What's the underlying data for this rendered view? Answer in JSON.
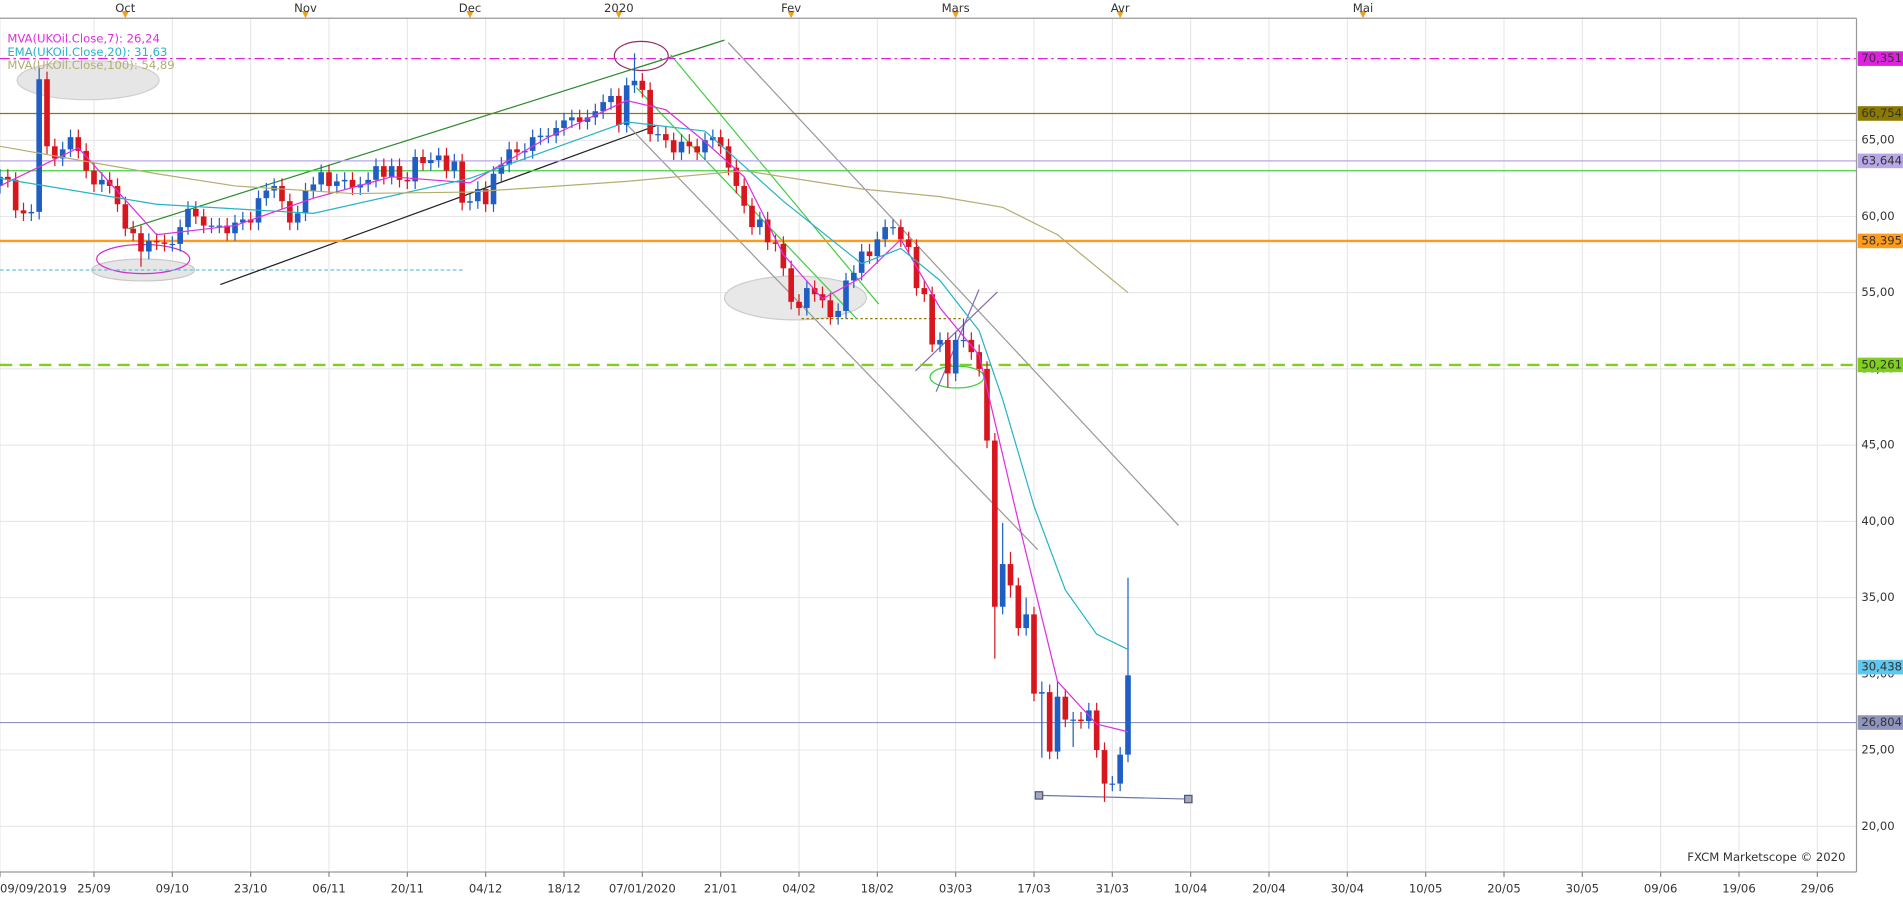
{
  "chart_data": {
    "type": "candlestick",
    "x": [
      0,
      1,
      2,
      3,
      4,
      5,
      6,
      7,
      8,
      9,
      10,
      11,
      12,
      13,
      14,
      15,
      16,
      17,
      18,
      19,
      20,
      21,
      22,
      23,
      24,
      25,
      26,
      27,
      28,
      29,
      30,
      31,
      32,
      33,
      34,
      35,
      36,
      37,
      38,
      39,
      40,
      41,
      42,
      43,
      44,
      45,
      46,
      47,
      48,
      49,
      50,
      51,
      52,
      53,
      54,
      55,
      56,
      57,
      58,
      59,
      60,
      61,
      62,
      63,
      64,
      65,
      66,
      67,
      68,
      69,
      70,
      71,
      72,
      73,
      74,
      75,
      76,
      77,
      78,
      79,
      80,
      81,
      82,
      83,
      84,
      85,
      86,
      87,
      88,
      89,
      90,
      91,
      92,
      93,
      94,
      95,
      96,
      97,
      98,
      99,
      100,
      101,
      102,
      103,
      104,
      105,
      106,
      107,
      108,
      109,
      110,
      111,
      112,
      113,
      114,
      115,
      116,
      117,
      118,
      119,
      120,
      121,
      122,
      123,
      124,
      125,
      126,
      127,
      128,
      129,
      130,
      131,
      132,
      133,
      134,
      135,
      136,
      137,
      138,
      139,
      140,
      141,
      142,
      143,
      144
    ],
    "open": [
      62.0,
      62.6,
      62.4,
      60.4,
      60.2,
      60.3,
      69.0,
      64.6,
      63.8,
      64.4,
      65.2,
      64.3,
      63.0,
      62.1,
      62.4,
      62.0,
      60.8,
      59.2,
      58.9,
      57.7,
      58.4,
      58.3,
      58.2,
      58.2,
      59.3,
      60.5,
      60.0,
      59.4,
      59.4,
      59.4,
      58.9,
      59.6,
      59.8,
      59.6,
      61.2,
      61.7,
      62.0,
      61.0,
      59.6,
      60.2,
      61.7,
      62.1,
      62.9,
      62.0,
      62.3,
      62.4,
      61.9,
      62.1,
      62.4,
      63.3,
      62.6,
      63.3,
      62.4,
      62.3,
      63.9,
      63.5,
      63.7,
      64.0,
      63.0,
      63.6,
      60.9,
      61.0,
      61.8,
      60.8,
      62.8,
      63.4,
      64.4,
      64.2,
      64.3,
      65.2,
      65.3,
      65.3,
      65.8,
      66.3,
      66.5,
      66.2,
      66.5,
      66.9,
      67.5,
      67.9,
      66.0,
      68.6,
      68.9,
      68.3,
      65.4,
      65.4,
      65.0,
      64.2,
      64.9,
      64.6,
      64.2,
      65.0,
      65.2,
      64.6,
      63.2,
      62.0,
      60.7,
      59.3,
      59.8,
      58.3,
      58.2,
      56.6,
      54.4,
      54.0,
      55.3,
      54.9,
      54.5,
      53.4,
      53.8,
      55.8,
      56.3,
      57.7,
      57.4,
      58.5,
      59.3,
      59.3,
      58.5,
      58.0,
      55.3,
      54.9,
      51.6,
      51.9,
      49.7,
      51.9,
      51.9,
      51.1,
      50.0,
      45.3,
      34.4,
      37.2,
      35.8,
      33.0,
      33.9,
      28.7,
      28.8,
      24.9,
      28.5,
      27.0,
      27.0,
      26.9,
      27.6,
      25.0,
      22.8,
      22.8,
      24.7
    ],
    "high": [
      63.1,
      63.1,
      62.9,
      60.9,
      60.8,
      69.8,
      69.5,
      65.1,
      64.9,
      65.7,
      65.7,
      64.8,
      63.5,
      62.9,
      62.9,
      62.5,
      61.3,
      59.7,
      59.4,
      58.9,
      58.9,
      58.8,
      58.7,
      59.8,
      61.0,
      61.0,
      60.5,
      59.9,
      59.9,
      59.9,
      60.1,
      60.3,
      60.3,
      61.7,
      62.2,
      62.5,
      62.5,
      61.5,
      60.7,
      62.2,
      62.6,
      63.4,
      63.4,
      62.8,
      62.9,
      62.9,
      62.6,
      62.9,
      63.8,
      63.8,
      63.8,
      63.8,
      62.9,
      64.4,
      64.4,
      64.2,
      64.5,
      64.5,
      64.1,
      64.1,
      61.5,
      62.3,
      62.3,
      63.3,
      63.9,
      64.9,
      64.9,
      64.8,
      65.7,
      65.8,
      65.8,
      66.3,
      66.8,
      67.0,
      67.0,
      67.0,
      67.4,
      68.0,
      68.4,
      68.4,
      69.1,
      70.7,
      69.4,
      68.8,
      65.9,
      65.9,
      65.5,
      65.4,
      65.4,
      65.1,
      65.5,
      65.7,
      65.7,
      65.1,
      63.7,
      62.5,
      61.2,
      60.3,
      60.3,
      58.8,
      58.7,
      57.1,
      54.9,
      55.8,
      55.8,
      55.4,
      55.0,
      54.3,
      56.3,
      56.8,
      58.2,
      58.2,
      59.0,
      59.8,
      59.8,
      59.8,
      59.0,
      58.5,
      55.8,
      55.4,
      52.4,
      52.4,
      52.4,
      53.3,
      52.4,
      51.6,
      50.5,
      45.8,
      39.9,
      38.0,
      36.3,
      35.0,
      34.4,
      29.5,
      29.3,
      29.5,
      29.0,
      27.5,
      27.5,
      28.1,
      28.1,
      25.5,
      23.3,
      25.2,
      36.3
    ],
    "low": [
      61.5,
      61.9,
      59.9,
      59.7,
      59.7,
      59.8,
      64.1,
      63.3,
      63.3,
      63.9,
      63.8,
      62.5,
      61.6,
      61.6,
      61.5,
      60.3,
      58.7,
      58.4,
      56.7,
      57.2,
      57.8,
      57.7,
      57.7,
      57.7,
      58.8,
      59.5,
      58.9,
      58.9,
      58.9,
      58.4,
      58.4,
      59.1,
      59.1,
      59.1,
      60.7,
      61.2,
      60.5,
      59.1,
      59.1,
      59.7,
      61.2,
      61.6,
      61.5,
      61.5,
      61.8,
      61.4,
      61.4,
      61.6,
      61.9,
      62.1,
      62.1,
      61.9,
      61.8,
      61.8,
      63.0,
      63.0,
      63.2,
      62.5,
      62.5,
      60.4,
      60.4,
      60.5,
      60.3,
      60.3,
      62.3,
      62.9,
      63.7,
      63.7,
      63.8,
      64.7,
      64.8,
      64.8,
      65.3,
      65.8,
      65.7,
      65.7,
      66.0,
      66.4,
      67.0,
      65.5,
      65.5,
      68.1,
      67.8,
      64.9,
      64.9,
      64.5,
      63.7,
      63.7,
      64.1,
      63.7,
      63.7,
      64.5,
      64.1,
      62.7,
      61.5,
      60.2,
      58.8,
      58.8,
      57.8,
      57.7,
      56.1,
      53.9,
      53.5,
      53.5,
      54.4,
      54.0,
      52.9,
      52.9,
      53.3,
      55.3,
      55.8,
      56.9,
      56.9,
      58.0,
      58.8,
      58.0,
      57.5,
      54.8,
      54.4,
      51.1,
      51.1,
      48.8,
      49.2,
      51.4,
      50.6,
      49.5,
      44.8,
      31.0,
      33.9,
      35.0,
      32.5,
      32.5,
      28.2,
      24.5,
      24.4,
      24.4,
      26.5,
      25.2,
      26.4,
      26.4,
      24.5,
      21.6,
      22.3,
      22.3,
      24.2
    ],
    "close": [
      62.6,
      62.4,
      60.4,
      60.2,
      60.3,
      69.0,
      64.6,
      63.8,
      64.4,
      65.2,
      64.3,
      63.0,
      62.1,
      62.4,
      62.0,
      60.8,
      59.2,
      58.9,
      57.7,
      58.4,
      58.3,
      58.2,
      58.2,
      59.3,
      60.5,
      60.0,
      59.4,
      59.4,
      59.4,
      58.9,
      59.6,
      59.8,
      59.6,
      61.2,
      61.7,
      62.0,
      61.0,
      59.6,
      60.2,
      61.7,
      62.1,
      62.9,
      62.0,
      62.3,
      62.4,
      61.9,
      62.1,
      62.4,
      63.3,
      62.6,
      63.3,
      62.4,
      62.3,
      63.9,
      63.5,
      63.7,
      64.0,
      63.0,
      63.6,
      60.9,
      61.0,
      61.8,
      60.8,
      62.8,
      63.4,
      64.4,
      64.2,
      64.3,
      65.2,
      65.3,
      65.3,
      65.8,
      66.3,
      66.5,
      66.2,
      66.5,
      66.9,
      67.5,
      67.9,
      66.0,
      68.6,
      68.9,
      68.3,
      65.4,
      65.4,
      65.0,
      64.2,
      64.9,
      64.6,
      64.2,
      65.0,
      65.2,
      64.6,
      63.2,
      62.0,
      60.7,
      59.3,
      59.8,
      58.3,
      58.2,
      56.6,
      54.4,
      54.0,
      55.3,
      54.9,
      54.5,
      53.4,
      53.8,
      55.8,
      56.3,
      57.7,
      57.4,
      58.5,
      59.3,
      59.3,
      58.5,
      58.0,
      55.3,
      54.9,
      51.6,
      51.9,
      49.7,
      51.9,
      51.9,
      51.1,
      50.0,
      45.3,
      34.4,
      37.2,
      35.8,
      33.0,
      33.9,
      28.7,
      28.8,
      24.9,
      28.5,
      27.0,
      27.0,
      26.9,
      27.6,
      25.0,
      22.8,
      22.8,
      24.7,
      29.9
    ],
    "up_color": "#1f5fc4",
    "down_color": "#d8161e",
    "lines": [
      {
        "name": "MVA(UKOil.Close,7): 26,24",
        "color": "#e02ee0",
        "x": [
          0,
          10,
          20,
          30,
          40,
          50,
          60,
          70,
          80,
          85,
          90,
          95,
          100,
          105,
          110,
          115,
          120,
          125,
          130,
          135,
          140,
          144
        ],
        "values": [
          62.0,
          64.5,
          58.8,
          59.4,
          61.2,
          62.6,
          62.2,
          65.2,
          67.6,
          67.0,
          64.9,
          62.6,
          57.5,
          54.6,
          56.0,
          58.5,
          54.0,
          50.9,
          40.0,
          29.5,
          26.7,
          26.2
        ]
      },
      {
        "name": "EMA(UKOil.Close,20): 31,63",
        "color": "#26b4c6",
        "x": [
          0,
          20,
          40,
          60,
          80,
          90,
          100,
          110,
          115,
          120,
          125,
          128,
          132,
          136,
          140,
          144
        ],
        "values": [
          62.5,
          60.8,
          60.2,
          62.5,
          66.2,
          65.6,
          61.0,
          56.9,
          57.9,
          55.8,
          52.5,
          48.0,
          41.0,
          35.5,
          32.6,
          31.6
        ]
      },
      {
        "name": "MVA(UKOil.Close,100): 54,89",
        "color": "#b4ad72",
        "x": [
          0,
          20,
          30,
          45,
          60,
          80,
          95,
          110,
          120,
          128,
          135,
          144
        ],
        "values": [
          64.6,
          62.8,
          62.0,
          61.5,
          61.6,
          62.3,
          63.0,
          61.8,
          61.3,
          60.6,
          58.8,
          55.0
        ]
      }
    ],
    "levels": [
      {
        "value": 70.351,
        "label": "70,351",
        "color": "#e020e0",
        "style": "dashdot"
      },
      {
        "value": 66.754,
        "label": "66,754",
        "color": "#8c7a00",
        "style": "solid"
      },
      {
        "value": 63.644,
        "label": "63,644",
        "color": "#b9a6e6",
        "style": "solid"
      },
      {
        "value": 63.0,
        "color": "#3fd23f",
        "style": "solid"
      },
      {
        "value": 58.395,
        "label": "58,395",
        "color": "#ff9a1a",
        "style": "thick"
      },
      {
        "value": 50.261,
        "label": "50,261",
        "color": "#7fcf1f",
        "style": "dashed"
      },
      {
        "value": 30.438,
        "label": "30,438",
        "color": "#5ec8f0",
        "style": "none"
      },
      {
        "value": 26.804,
        "label": "26,804",
        "color": "#8f94bd",
        "style": "solid"
      }
    ],
    "xlim": [
      0,
      237
    ],
    "ylim": [
      17,
      73
    ],
    "xticks": [
      {
        "value": 0,
        "label": "09/09/2019"
      },
      {
        "value": 12,
        "label": "25/09"
      },
      {
        "value": 22,
        "label": "09/10"
      },
      {
        "value": 32,
        "label": "23/10"
      },
      {
        "value": 42,
        "label": "06/11"
      },
      {
        "value": 52,
        "label": "20/11"
      },
      {
        "value": 62,
        "label": "04/12"
      },
      {
        "value": 72,
        "label": "18/12"
      },
      {
        "value": 82,
        "label": "07/01/2020"
      },
      {
        "value": 92,
        "label": "21/01"
      },
      {
        "value": 102,
        "label": "04/02"
      },
      {
        "value": 112,
        "label": "18/02"
      },
      {
        "value": 122,
        "label": "03/03"
      },
      {
        "value": 132,
        "label": "17/03"
      },
      {
        "value": 142,
        "label": "31/03"
      },
      {
        "value": 152,
        "label": "10/04"
      },
      {
        "value": 162,
        "label": "20/04"
      },
      {
        "value": 172,
        "label": "30/04"
      },
      {
        "value": 182,
        "label": "10/05"
      },
      {
        "value": 192,
        "label": "20/05"
      },
      {
        "value": 202,
        "label": "30/05"
      },
      {
        "value": 212,
        "label": "09/06"
      },
      {
        "value": 222,
        "label": "19/06"
      },
      {
        "value": 232,
        "label": "29/06"
      }
    ],
    "top_ticks": [
      {
        "value": 16,
        "label": "Oct"
      },
      {
        "value": 39,
        "label": "Nov"
      },
      {
        "value": 60,
        "label": "Dec"
      },
      {
        "value": 79,
        "label": "2020"
      },
      {
        "value": 101,
        "label": "Fev"
      },
      {
        "value": 122,
        "label": "Mars"
      },
      {
        "value": 143,
        "label": "Avr"
      },
      {
        "value": 174,
        "label": "Mai"
      }
    ],
    "yticks": [
      {
        "value": 20,
        "label": "20,00"
      },
      {
        "value": 25,
        "label": "25,00"
      },
      {
        "value": 30,
        "label": "30,00"
      },
      {
        "value": 35,
        "label": "35,00"
      },
      {
        "value": 40,
        "label": "40,00"
      },
      {
        "value": 45,
        "label": "45,00"
      },
      {
        "value": 50,
        "label": "50,00"
      },
      {
        "value": 55,
        "label": "55,00"
      },
      {
        "value": 60,
        "label": "60,00"
      },
      {
        "value": 65,
        "label": "65,00"
      }
    ],
    "grid": true,
    "footer": "FXCM Marketscope © 2020"
  }
}
